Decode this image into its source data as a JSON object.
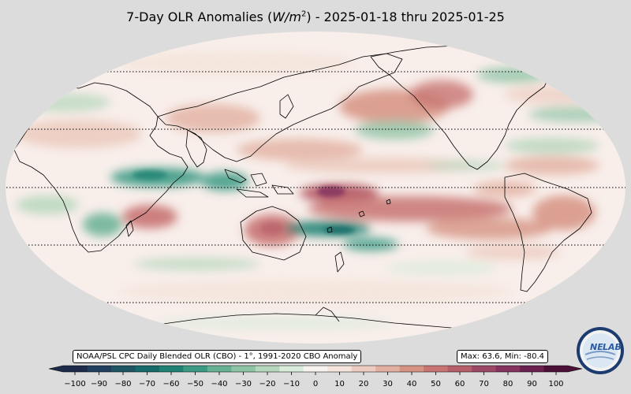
{
  "title": {
    "prefix": "7-Day OLR Anomalies (",
    "unit_var": "W/m",
    "unit_exp": "2",
    "suffix": ") - 2025-01-18 thru 2025-01-25"
  },
  "source_label": "NOAA/PSL CPC Daily Blended OLR (CBO) - 1°, 1991-2020 CBO Anomaly",
  "stats_label": "Max: 63.6,  Min: -80.4",
  "colorbar": {
    "ticks": [
      "−100",
      "−90",
      "−80",
      "−70",
      "−60",
      "−50",
      "−40",
      "−30",
      "−20",
      "−10",
      "0",
      "10",
      "20",
      "30",
      "40",
      "50",
      "60",
      "70",
      "80",
      "90",
      "100"
    ],
    "colors": [
      "#1e2a49",
      "#203e5e",
      "#1e5563",
      "#176b6a",
      "#1f8274",
      "#3b9a84",
      "#66b094",
      "#8ec4a6",
      "#b4d6bc",
      "#d9ebdb",
      "#f6f2ee",
      "#f4e4dc",
      "#ecccc0",
      "#e2b0a0",
      "#d69383",
      "#c87472",
      "#b65e69",
      "#9d4866",
      "#84335f",
      "#6a2150",
      "#4a1035"
    ]
  },
  "logo": {
    "text_left": "NE",
    "text_right": "LAB",
    "icon": "noaa-psl-nexlab-logo"
  },
  "map": {
    "colors": {
      "background": "#f8eeea",
      "positive": "#c8756f",
      "positive_light": "#e6b8a8",
      "negative": "#2a7f6f",
      "negative_light": "#9bc8a8",
      "max": "#8c3a64",
      "coastline": "#000000"
    }
  }
}
